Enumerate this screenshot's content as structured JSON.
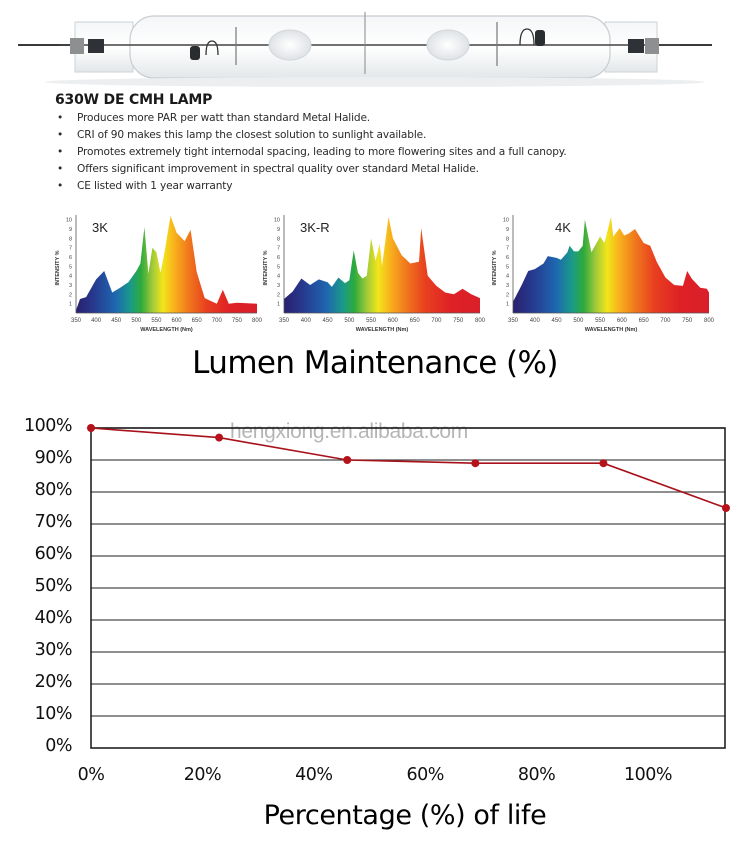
{
  "product": {
    "title": "630W DE CMH LAMP",
    "bullets": [
      "Produces more PAR per watt than standard Metal Halide.",
      "CRI of 90 makes this lamp the closest solution to sunlight available.",
      "Promotes extremely tight internodal spacing, leading to more flowering sites and a full canopy.",
      "Offers significant improvement in spectral quality over standard Metal Halide.",
      "CE listed with 1 year warranty"
    ]
  },
  "spectra": [
    {
      "label": "3K",
      "ylabel": "INTENSITY %",
      "xlabel": "WAVELENGTH (Nm)"
    },
    {
      "label": "3K-R",
      "ylabel": "INTENSITY %",
      "xlabel": "WAVELENGTH (Nm)"
    },
    {
      "label": "4K",
      "ylabel": "INTENSITY %",
      "xlabel": "WAVELENGTH (Nm)"
    }
  ],
  "spectrum_axis": {
    "y_ticks": [
      "10",
      "9",
      "8",
      "7",
      "6",
      "5",
      "4",
      "3",
      "2",
      "1"
    ],
    "x_ticks": [
      "350",
      "400",
      "450",
      "500",
      "550",
      "600",
      "650",
      "700",
      "750",
      "800"
    ]
  },
  "watermark": "hengxiong.en.alibaba.com",
  "chart_data": [
    {
      "type": "line",
      "title": "Lumen Maintenance (%)",
      "xlabel": "Percentage (%) of life",
      "ylabel": "",
      "x_tick_labels": [
        "0%",
        "20%",
        "40%",
        "60%",
        "80%",
        "100%"
      ],
      "y_tick_labels": [
        "100%",
        "90%",
        "80%",
        "70%",
        "60%",
        "50%",
        "40%",
        "30%",
        "20%",
        "10%",
        "0%"
      ],
      "ylim": [
        0,
        100
      ],
      "xlim": [
        0,
        114
      ],
      "grid": true,
      "legend": null,
      "series": [
        {
          "name": "Lumen Maintenance",
          "color": "#b5121b",
          "x": [
            0,
            23,
            46,
            69,
            92,
            114
          ],
          "values": [
            100,
            97,
            90,
            89,
            89,
            75
          ]
        }
      ]
    },
    {
      "type": "area",
      "title": "3K",
      "xlabel": "WAVELENGTH (Nm)",
      "ylabel": "INTENSITY %",
      "xlim": [
        350,
        800
      ],
      "ylim": [
        0,
        10
      ],
      "x": [
        350,
        360,
        375,
        400,
        420,
        440,
        460,
        480,
        500,
        510,
        520,
        530,
        540,
        550,
        560,
        570,
        585,
        600,
        620,
        635,
        650,
        670,
        700,
        715,
        730,
        750,
        800
      ],
      "values": [
        0.3,
        1.5,
        1.7,
        3.6,
        4.5,
        2.2,
        2.7,
        3.3,
        4.5,
        5.3,
        9.2,
        4.2,
        7.0,
        6.5,
        4.3,
        6.5,
        10.4,
        8.6,
        7.7,
        8.9,
        4.4,
        1.6,
        1.0,
        2.5,
        1.0,
        1.1,
        1.0
      ]
    },
    {
      "type": "area",
      "title": "3K-R",
      "xlabel": "WAVELENGTH (Nm)",
      "ylabel": "INTENSITY %",
      "xlim": [
        350,
        800
      ],
      "ylim": [
        0,
        10
      ],
      "x": [
        350,
        370,
        390,
        410,
        430,
        450,
        460,
        475,
        490,
        500,
        510,
        520,
        530,
        540,
        550,
        560,
        570,
        575,
        590,
        600,
        620,
        640,
        660,
        665,
        680,
        700,
        720,
        740,
        760,
        780,
        800
      ],
      "values": [
        1.5,
        2.3,
        3.7,
        3.0,
        3.6,
        3.3,
        2.8,
        3.8,
        3.2,
        3.5,
        6.7,
        4.3,
        3.7,
        4.0,
        8.0,
        5.6,
        7.4,
        5.0,
        10.3,
        8.0,
        6.2,
        5.3,
        5.5,
        9.1,
        4.0,
        2.9,
        2.2,
        2.0,
        2.6,
        2.0,
        1.6
      ]
    },
    {
      "type": "area",
      "title": "4K",
      "xlabel": "WAVELENGTH (Nm)",
      "ylabel": "INTENSITY %",
      "xlim": [
        350,
        800
      ],
      "ylim": [
        0,
        10
      ],
      "x": [
        350,
        370,
        385,
        400,
        420,
        430,
        450,
        460,
        475,
        480,
        490,
        500,
        510,
        515,
        530,
        550,
        560,
        575,
        580,
        595,
        605,
        615,
        630,
        650,
        665,
        680,
        700,
        720,
        740,
        750,
        760,
        780,
        795,
        800
      ],
      "values": [
        1.2,
        3.0,
        4.5,
        4.7,
        5.3,
        6.1,
        5.9,
        5.7,
        6.5,
        7.2,
        6.6,
        6.6,
        7.2,
        10.0,
        6.5,
        8.2,
        7.5,
        10.3,
        8.2,
        9.1,
        8.3,
        8.5,
        9.0,
        7.5,
        7.2,
        5.5,
        3.8,
        3.0,
        2.9,
        4.5,
        3.7,
        2.7,
        2.6,
        2.2
      ]
    }
  ]
}
